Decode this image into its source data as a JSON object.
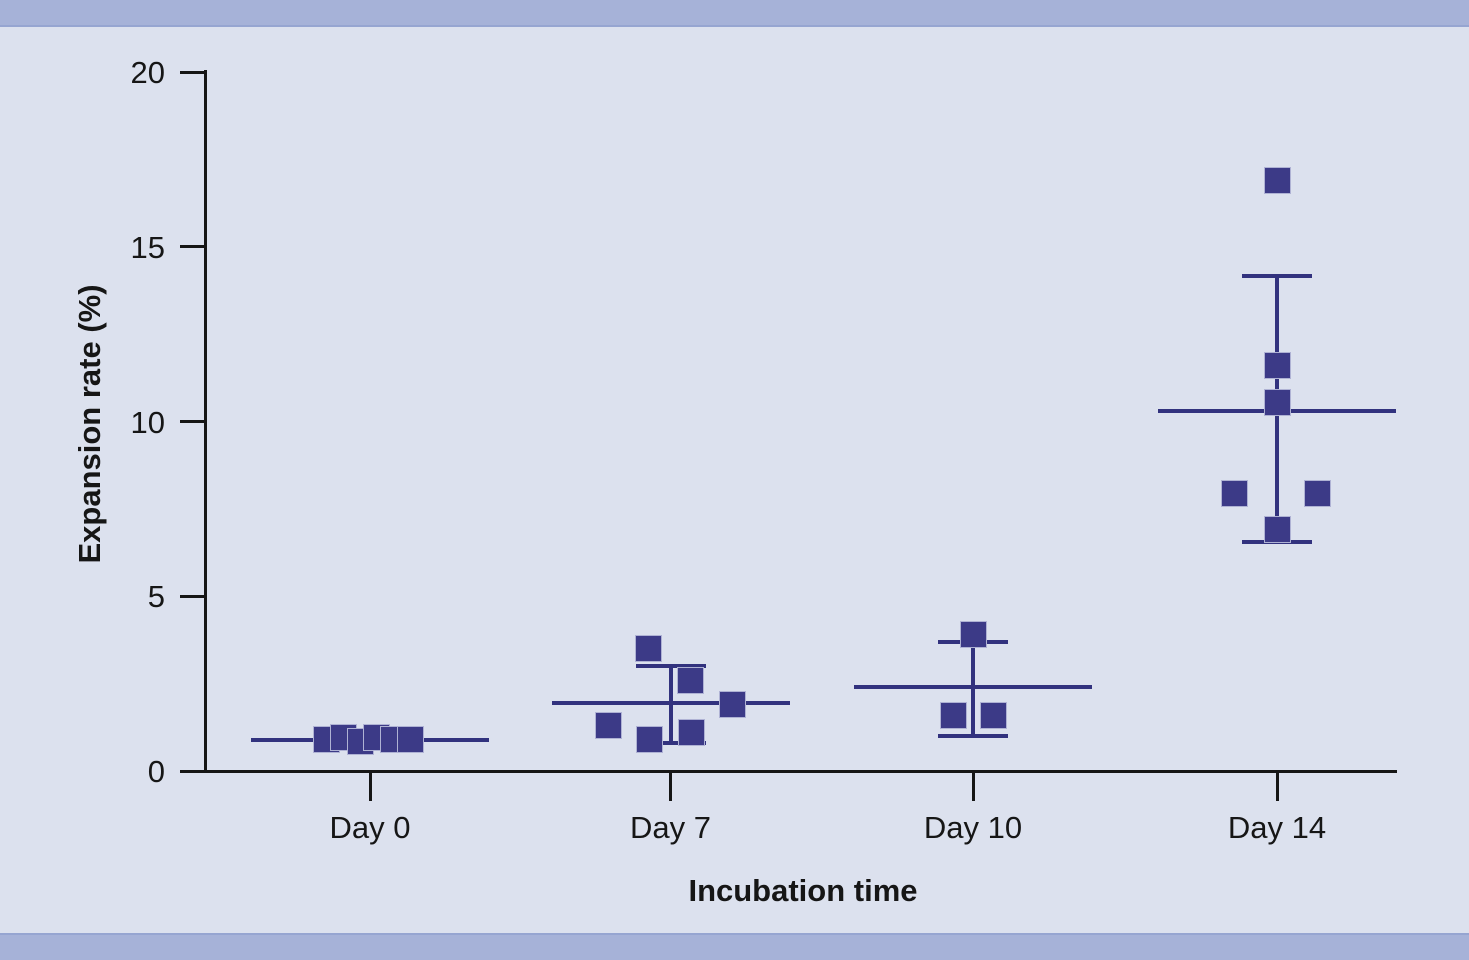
{
  "page": {
    "plot_background": "#dce1ee",
    "band_color": "#a6b2d8",
    "band_edge_color": "#96a5d1",
    "axis_color": "#161616",
    "marker_color": "#3c3a87",
    "stat_line_color": "#32327e"
  },
  "chart_data": {
    "type": "scatter",
    "title": "",
    "xlabel": "Incubation time",
    "ylabel": "Expansion rate (%)",
    "x_categories": [
      "Day 0",
      "Day 7",
      "Day 10",
      "Day 14"
    ],
    "y_ticks": [
      0,
      5,
      10,
      15,
      20
    ],
    "ylim": [
      0,
      20
    ],
    "grid": false,
    "legend": "none",
    "marker_shape": "filled-square",
    "summary_style": "mean line with SD error bars",
    "groups": [
      {
        "category": "Day 0",
        "mean": 0.9,
        "sd_low": null,
        "sd_high": null,
        "points": [
          {
            "value": 0.9,
            "dx": -44
          },
          {
            "value": 0.95,
            "dx": -27
          },
          {
            "value": 0.85,
            "dx": -10
          },
          {
            "value": 0.95,
            "dx": 6
          },
          {
            "value": 0.9,
            "dx": 23
          },
          {
            "value": 0.9,
            "dx": 40
          }
        ]
      },
      {
        "category": "Day 7",
        "mean": 1.95,
        "sd_low": 0.8,
        "sd_high": 3.0,
        "points": [
          {
            "value": 3.5,
            "dx": -22
          },
          {
            "value": 2.6,
            "dx": 20
          },
          {
            "value": 1.9,
            "dx": 62
          },
          {
            "value": 1.3,
            "dx": -62
          },
          {
            "value": 1.1,
            "dx": 21
          },
          {
            "value": 0.9,
            "dx": -21
          }
        ]
      },
      {
        "category": "Day 10",
        "mean": 2.4,
        "sd_low": 1.0,
        "sd_high": 3.7,
        "points": [
          {
            "value": 3.9,
            "dx": 0
          },
          {
            "value": 1.6,
            "dx": -20
          },
          {
            "value": 1.6,
            "dx": 20
          }
        ]
      },
      {
        "category": "Day 14",
        "mean": 10.3,
        "sd_low": 6.55,
        "sd_high": 14.15,
        "points": [
          {
            "value": 16.9,
            "dx": 0
          },
          {
            "value": 11.6,
            "dx": 0
          },
          {
            "value": 10.55,
            "dx": 0
          },
          {
            "value": 7.95,
            "dx": -43
          },
          {
            "value": 7.95,
            "dx": 40
          },
          {
            "value": 6.9,
            "dx": 0
          }
        ]
      }
    ]
  }
}
